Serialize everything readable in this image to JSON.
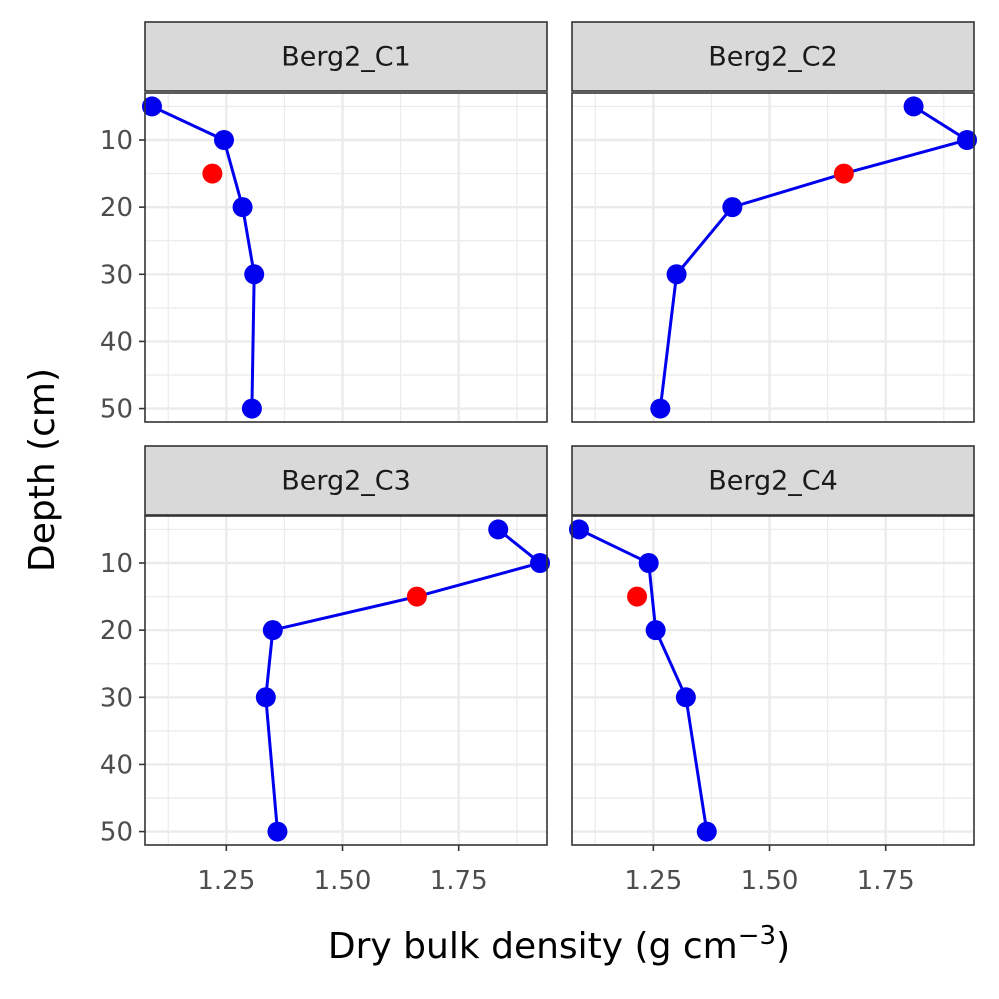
{
  "chart_data": {
    "type": "scatter",
    "layout": "facet-grid 2x2",
    "xlabel": "Dry bulk density (g cm",
    "xlabel_superscript": "−3",
    "xlabel_suffix": ")",
    "ylabel": "Depth (cm)",
    "xlim": [
      1.075,
      1.94
    ],
    "ylim": [
      52,
      3
    ],
    "y_reversed": true,
    "x_ticks": [
      1.25,
      1.5,
      1.75
    ],
    "x_tick_labels": [
      "1.25",
      "1.50",
      "1.75"
    ],
    "y_ticks": [
      10,
      20,
      30,
      40,
      50
    ],
    "y_tick_labels": [
      "10",
      "20",
      "30",
      "40",
      "50"
    ],
    "grid": true,
    "colors": {
      "line": "#0000ee",
      "points": "#0000ee",
      "highlight": "#ff0000",
      "strip_background": "#d9d9d9",
      "grid": "#ebebeb",
      "panel_border": "#333333"
    },
    "panels": [
      {
        "title": "Berg2_C1",
        "series": [
          {
            "x": 1.09,
            "y": 5
          },
          {
            "x": 1.245,
            "y": 10
          },
          {
            "x": 1.285,
            "y": 20
          },
          {
            "x": 1.31,
            "y": 30
          },
          {
            "x": 1.305,
            "y": 50
          }
        ],
        "highlight": [
          {
            "x": 1.22,
            "y": 15
          }
        ]
      },
      {
        "title": "Berg2_C2",
        "series": [
          {
            "x": 1.81,
            "y": 5
          },
          {
            "x": 1.925,
            "y": 10
          },
          {
            "x": 1.66,
            "y": 15
          },
          {
            "x": 1.42,
            "y": 20
          },
          {
            "x": 1.3,
            "y": 30
          },
          {
            "x": 1.265,
            "y": 50
          }
        ],
        "highlight": [
          {
            "x": 1.66,
            "y": 15
          }
        ]
      },
      {
        "title": "Berg2_C3",
        "series": [
          {
            "x": 1.835,
            "y": 5
          },
          {
            "x": 1.925,
            "y": 10
          },
          {
            "x": 1.66,
            "y": 15
          },
          {
            "x": 1.35,
            "y": 20
          },
          {
            "x": 1.335,
            "y": 30
          },
          {
            "x": 1.36,
            "y": 50
          }
        ],
        "highlight": [
          {
            "x": 1.66,
            "y": 15
          }
        ]
      },
      {
        "title": "Berg2_C4",
        "series": [
          {
            "x": 1.09,
            "y": 5
          },
          {
            "x": 1.24,
            "y": 10
          },
          {
            "x": 1.255,
            "y": 20
          },
          {
            "x": 1.32,
            "y": 30
          },
          {
            "x": 1.365,
            "y": 50
          }
        ],
        "highlight": [
          {
            "x": 1.215,
            "y": 15
          }
        ]
      }
    ]
  }
}
